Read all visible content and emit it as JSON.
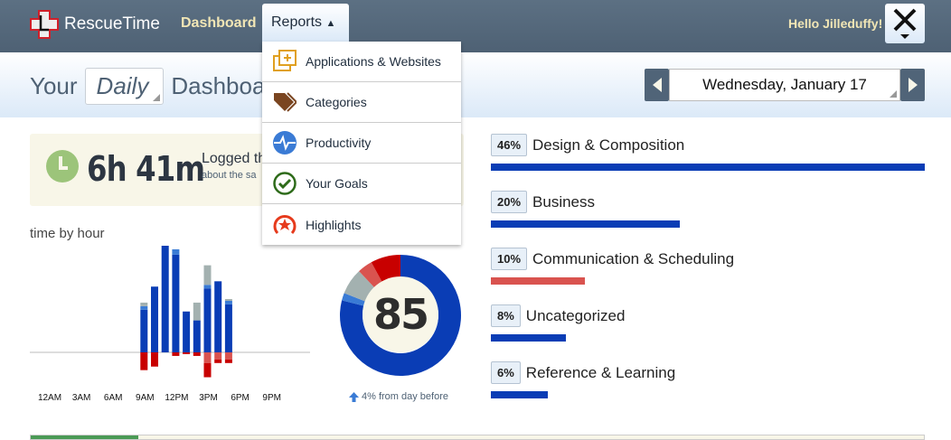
{
  "header": {
    "logo": "RescueTime",
    "nav_dashboard": "Dashboard",
    "nav_reports": "Reports",
    "greeting": "Hello Jilleduffy!",
    "tools_icon": "tools-icon"
  },
  "reports_menu": [
    {
      "label": "Applications & Websites",
      "icon": "apps-icon",
      "color": "#e0a020"
    },
    {
      "label": "Categories",
      "icon": "tag-icon",
      "color": "#7a4520"
    },
    {
      "label": "Productivity",
      "icon": "pulse-icon",
      "color": "#3a7bd5"
    },
    {
      "label": "Your Goals",
      "icon": "check-icon",
      "color": "#2e6b1a"
    },
    {
      "label": "Highlights",
      "icon": "highlight-icon",
      "color": "#e63a1c"
    }
  ],
  "title": {
    "prefix": "Your",
    "period": "Daily",
    "suffix": "Dashboard"
  },
  "date_nav": {
    "date": "Wednesday, January 17"
  },
  "logged": {
    "time": "6h 41m",
    "title": "Logged th",
    "subtitle": "about the sa"
  },
  "time_by_hour": {
    "label": "time by hour"
  },
  "chart_data": {
    "type": "bar",
    "categories": [
      "9AM",
      "10AM",
      "11AM",
      "12PM",
      "1PM",
      "2PM",
      "3PM",
      "4PM",
      "5PM"
    ],
    "hours": [
      9,
      10,
      11,
      12,
      13,
      14,
      15,
      16,
      17
    ],
    "x_tick_labels": [
      "12AM",
      "3AM",
      "6AM",
      "9AM",
      "12PM",
      "3PM",
      "6PM",
      "9PM"
    ],
    "series": [
      {
        "key": "very_productive",
        "color": "#0a3db5",
        "values": [
          24,
          37,
          60,
          55,
          23,
          18,
          36,
          40,
          27
        ]
      },
      {
        "key": "productive",
        "color": "#3a7bd5",
        "values": [
          2,
          0,
          0,
          3,
          0,
          0,
          2,
          0,
          2
        ]
      },
      {
        "key": "neutral",
        "color": "#a3b1b0",
        "values": [
          2,
          0,
          0,
          0,
          0,
          10,
          11,
          0,
          1
        ]
      },
      {
        "key": "distracting",
        "color": "#d9534f",
        "values": [
          0,
          0,
          0,
          0,
          0,
          0,
          6,
          4,
          4
        ]
      },
      {
        "key": "very_distracting",
        "color": "#c80000",
        "values": [
          10,
          8,
          0,
          2,
          1,
          2,
          8,
          2,
          2
        ]
      }
    ],
    "ylim": [
      -30,
      60
    ]
  },
  "pulse": {
    "score": "85",
    "delta": "4% from day before",
    "segments": [
      {
        "value": 79,
        "color": "#0a3db5"
      },
      {
        "value": 2,
        "color": "#3a7bd5"
      },
      {
        "value": 7,
        "color": "#a3b1b0"
      },
      {
        "value": 4,
        "color": "#d9534f"
      },
      {
        "value": 8,
        "color": "#c80000"
      }
    ]
  },
  "categories": [
    {
      "pct": "46%",
      "name": "Design & Composition",
      "value": 46,
      "color": "#0a3db5"
    },
    {
      "pct": "20%",
      "name": "Business",
      "value": 20,
      "color": "#0a3db5"
    },
    {
      "pct": "10%",
      "name": "Communication & Scheduling",
      "value": 10,
      "color": "#d9534f"
    },
    {
      "pct": "8%",
      "name": "Uncategorized",
      "value": 8,
      "color": "#0a3db5"
    },
    {
      "pct": "6%",
      "name": "Reference & Learning",
      "value": 6,
      "color": "#0a3db5"
    }
  ],
  "goal_progress": 0.12
}
